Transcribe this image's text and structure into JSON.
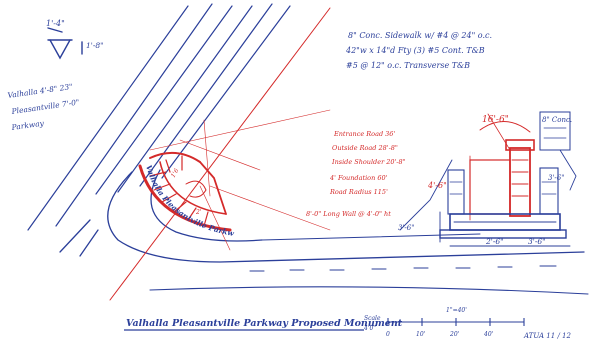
{
  "colors": {
    "ink_blue": "#2b3f9a",
    "ink_red": "#d42a2a",
    "paper": "#ffffff"
  },
  "north_arrow": {
    "top_label": "1'-4\"",
    "right_label": "1'-8\""
  },
  "left_note": {
    "line1": "Valhalla  4'-8\" 23\"",
    "line2": "Pleasantville  7'-0\"",
    "line3": "Parkway"
  },
  "top_notes": {
    "line1": "8\" Conc. Sidewalk w/ #4 @ 24\" o.c.",
    "line2": "42\"w x 14\"d Fty (3) #5 Cont. T&B",
    "line3": "#5 @ 12\" o.c. Transverse T&B"
  },
  "red_notes": {
    "line1": "Entrance Road 36'",
    "line2": "Outside Road 28'-8\"",
    "line3": "Inside Shoulder 20'-8\"",
    "line4": "4' Foundation 60'",
    "line5": "Road Radius 115'",
    "line6": "8'-0\" Long Wall @ 4'-0\" ht"
  },
  "plan_labels": {
    "arc_text": "Valhalla Pleasantville Parkway",
    "dim_16": "16'-6\"",
    "conc_tag": "8\" Conc.",
    "dim_4": "4'-6\"",
    "dim_3_left": "3'-6\"",
    "dim_right": "3'-6\"",
    "dim_bottom_a": "2'-6\"",
    "dim_bottom_b": "3'-6\""
  },
  "bottom_title": "Valhalla Pleasantville Parkway  Proposed Monument",
  "scale_labels": [
    "Scale",
    "4'0\"",
    "1\"=40'",
    "0",
    "10'",
    "20'",
    "40'"
  ],
  "date_note": "ATUA 11 / 12"
}
